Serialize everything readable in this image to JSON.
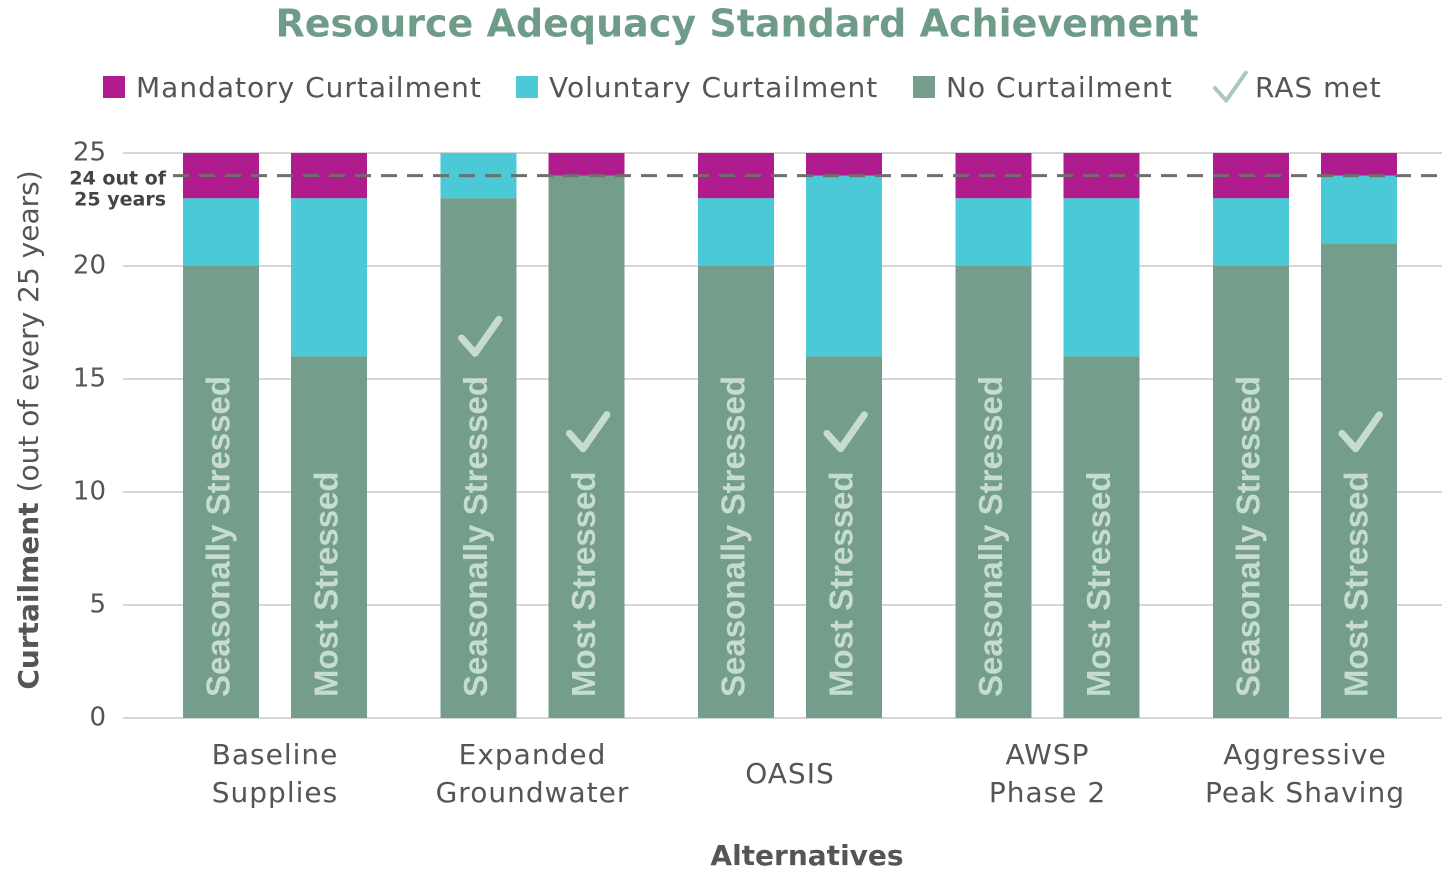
{
  "chart_data": {
    "type": "stacked_bar",
    "title": "Resource Adequacy Standard Achievement",
    "y_label": {
      "bold": "Curtailment",
      "rest": "(out of every 25 years)"
    },
    "x_label": "Alternatives",
    "group_labels": [
      [
        "Baseline",
        "Supplies"
      ],
      [
        "Expanded",
        "Groundwater"
      ],
      [
        "OASIS"
      ],
      [
        "AWSP",
        "Phase 2"
      ],
      [
        "Aggressive",
        "Peak Shaving"
      ]
    ],
    "bar_labels": [
      "Seasonally Stressed",
      "Most Stressed",
      "Seasonally Stressed",
      "Most Stressed",
      "Seasonally Stressed",
      "Most Stressed",
      "Seasonally Stressed",
      "Most Stressed",
      "Seasonally Stressed",
      "Most Stressed"
    ],
    "series": [
      {
        "name": "No Curtailment",
        "color": "#759d8b",
        "values": [
          20,
          16,
          23,
          24,
          20,
          16,
          20,
          16,
          20,
          21
        ]
      },
      {
        "name": "Voluntary Curtailment",
        "color": "#4bc9d7",
        "values": [
          3,
          7,
          2,
          0,
          3,
          8,
          3,
          7,
          3,
          3
        ]
      },
      {
        "name": "Mandatory Curtailment",
        "color": "#b01b8d",
        "values": [
          2,
          2,
          0,
          1,
          2,
          1,
          2,
          2,
          2,
          1
        ]
      }
    ],
    "legend_order": [
      2,
      1,
      0
    ],
    "ras_legend": "RAS met",
    "ras_met": [
      false,
      false,
      true,
      true,
      false,
      true,
      false,
      false,
      false,
      true
    ],
    "reference_line": {
      "value": 24,
      "label": [
        "24 out of",
        "25 years"
      ]
    },
    "ylim": [
      0,
      25
    ],
    "yticks": [
      0,
      5,
      10,
      15,
      20,
      25
    ],
    "grid": true
  }
}
